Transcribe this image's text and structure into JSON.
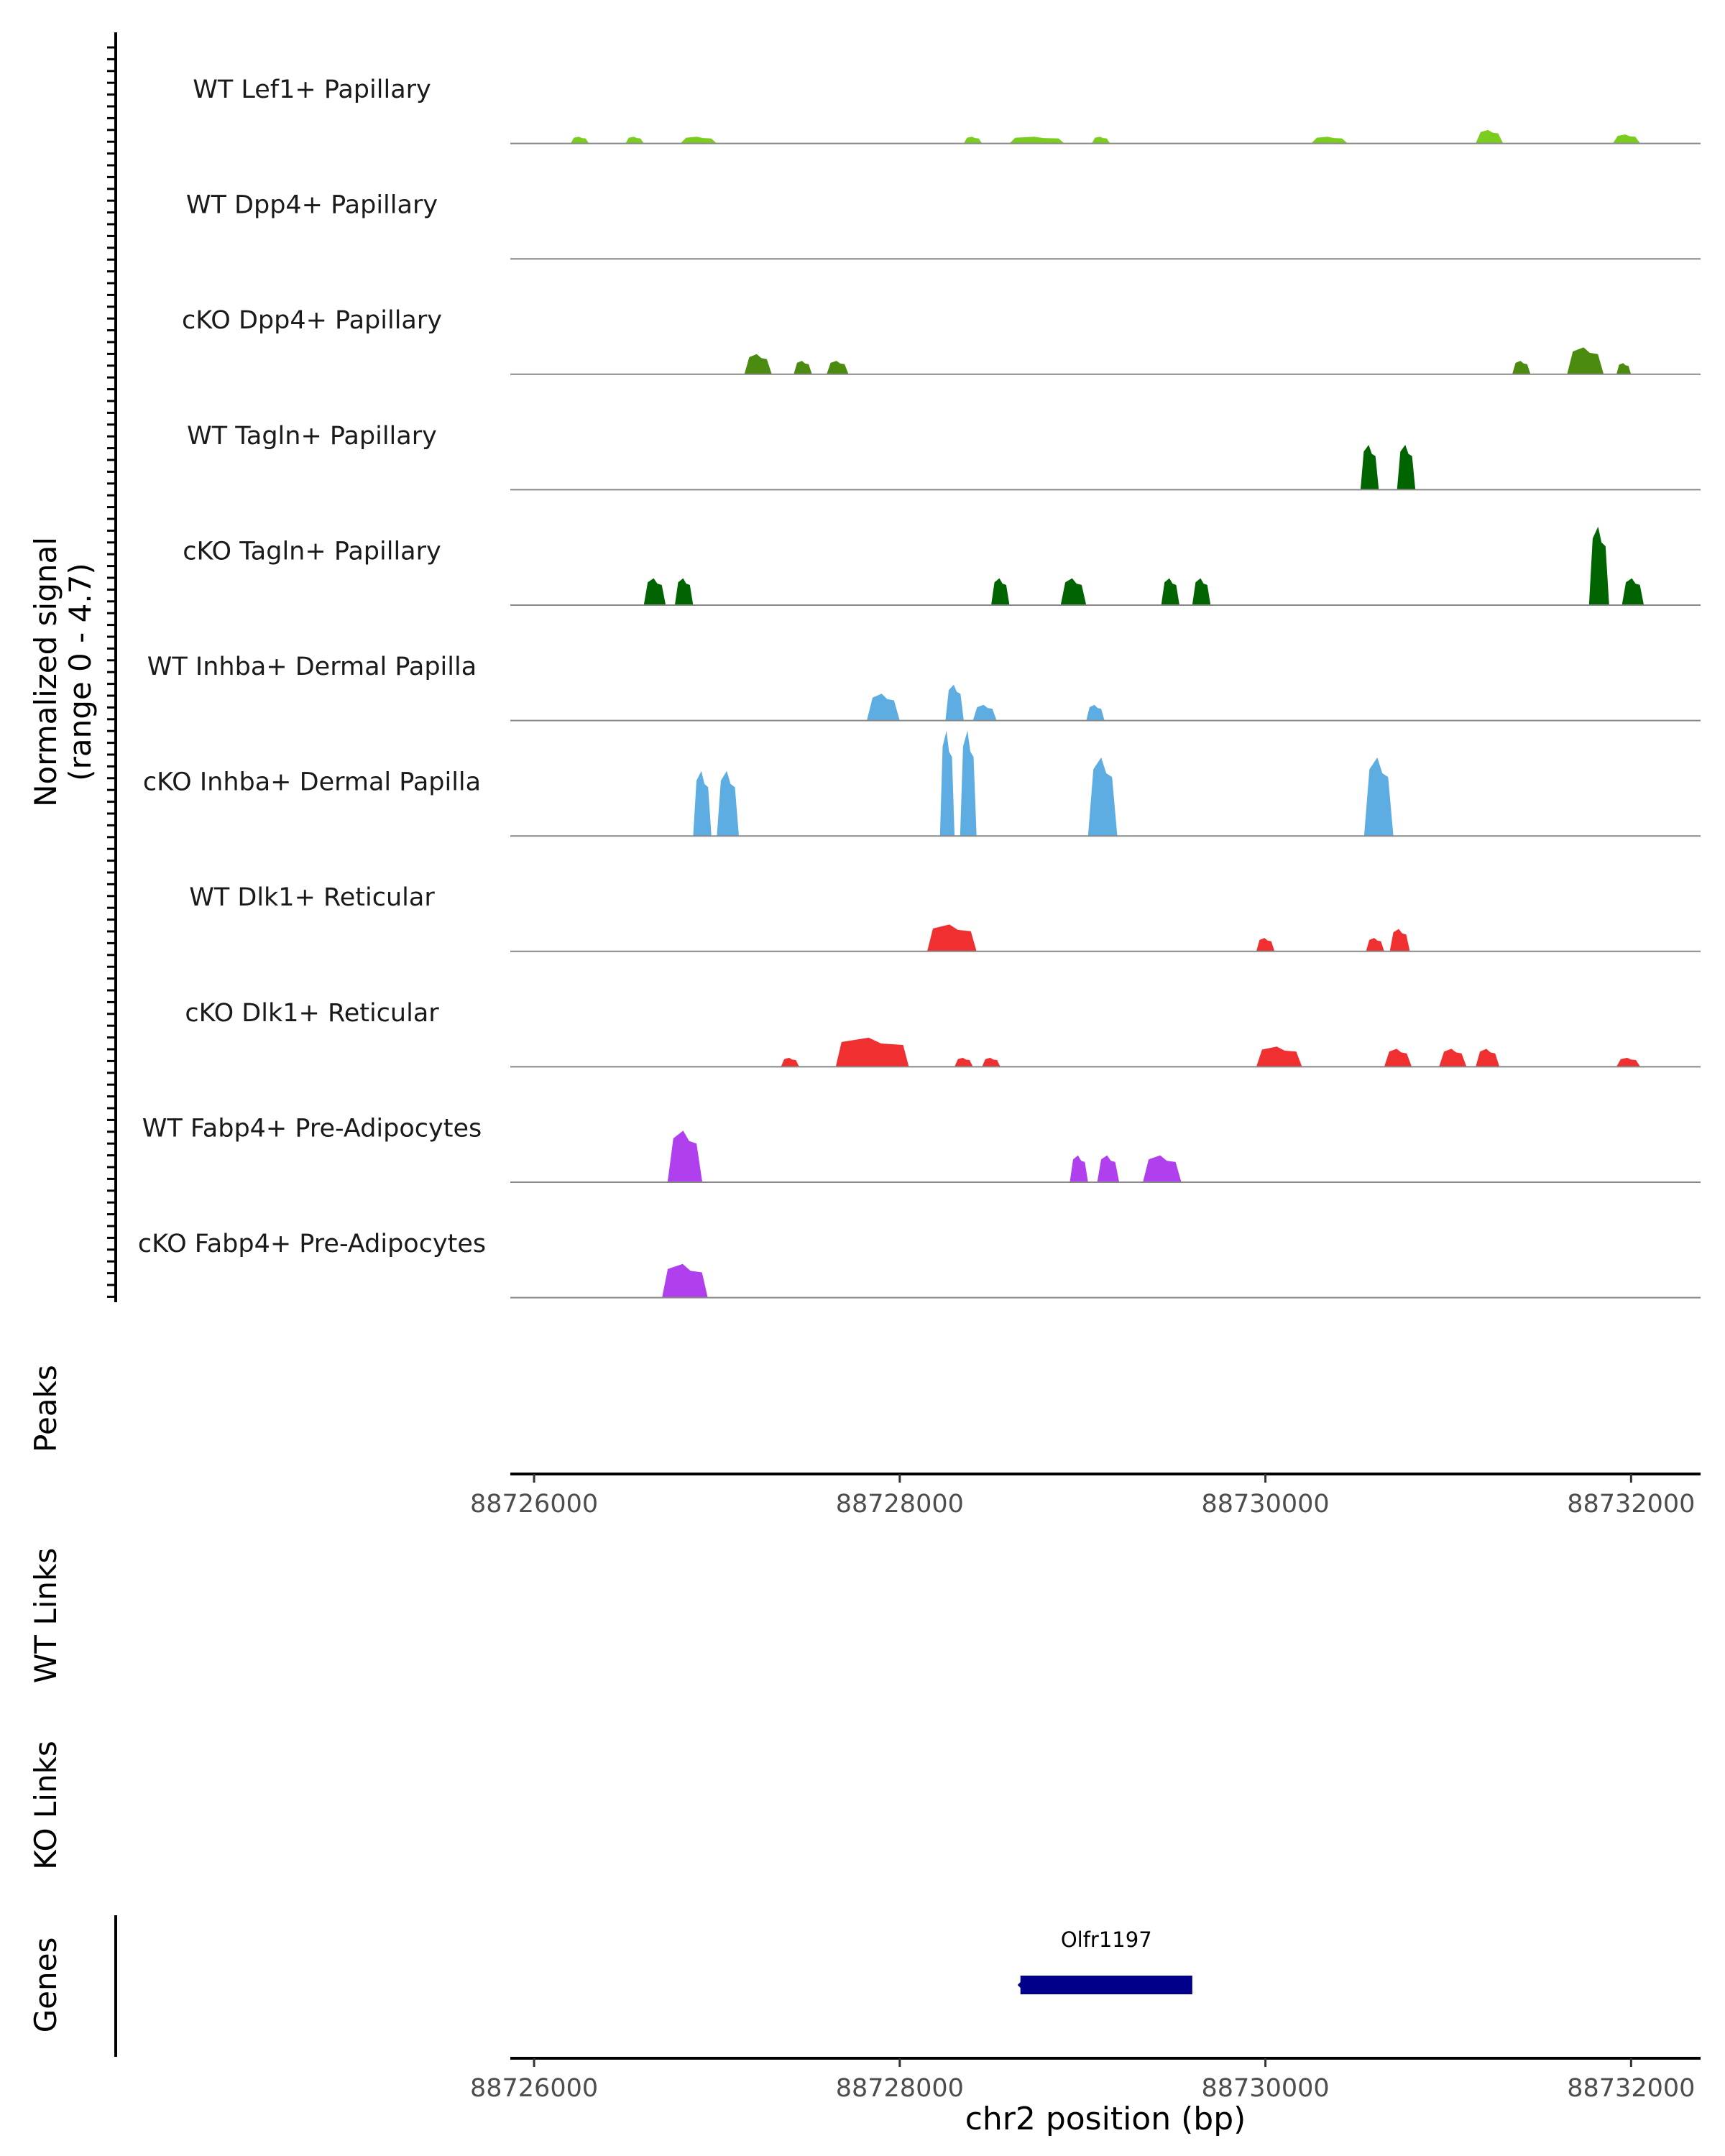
{
  "chart_data": {
    "type": "area",
    "title": "",
    "xlabel": "chr2 position (bp)",
    "ylabel_line1": "Normalized signal",
    "ylabel_line2": "(range 0 - 4.7)",
    "ylim": [
      0,
      4.7
    ],
    "xlim": [
      88725870,
      88732380
    ],
    "x_ticks": [
      88726000,
      88728000,
      88730000,
      88732000
    ],
    "x_tick_labels": [
      "88726000",
      "88728000",
      "88730000",
      "88732000"
    ],
    "tracks": [
      {
        "name": "WT Lef1+ Papillary",
        "color": "#7ACD1E",
        "peaks": [
          [
            88726200,
            88726300,
            0.05,
            0.3
          ],
          [
            88726500,
            88726600,
            0,
            0.3
          ],
          [
            88726800,
            88727000,
            0.05,
            0.3
          ],
          [
            88728350,
            88728450,
            0,
            0.3
          ],
          [
            88728600,
            88728900,
            0.1,
            0.3
          ],
          [
            88729050,
            88729150,
            0,
            0.3
          ],
          [
            88730250,
            88730450,
            0,
            0.3
          ],
          [
            88731150,
            88731300,
            0,
            0.6
          ],
          [
            88731900,
            88732050,
            0,
            0.4
          ]
        ]
      },
      {
        "name": "WT Dpp4+ Papillary",
        "color": "#4B8B0F",
        "peaks": []
      },
      {
        "name": "cKO Dpp4+ Papillary",
        "color": "#4B8B0F",
        "peaks": [
          [
            88727150,
            88727300,
            0.1,
            0.9
          ],
          [
            88727420,
            88727520,
            0,
            0.6
          ],
          [
            88727600,
            88727720,
            0,
            0.6
          ],
          [
            88731350,
            88731450,
            0,
            0.6
          ],
          [
            88731650,
            88731850,
            0.1,
            1.2
          ],
          [
            88731920,
            88732000,
            0,
            0.5
          ]
        ]
      },
      {
        "name": "WT Tagln+ Papillary",
        "color": "#006400",
        "peaks": [
          [
            88730520,
            88730620,
            0,
            2.0
          ],
          [
            88730720,
            88730820,
            0,
            2.0
          ]
        ]
      },
      {
        "name": "cKO Tagln+ Papillary",
        "color": "#006400",
        "peaks": [
          [
            88726600,
            88726720,
            0,
            1.2
          ],
          [
            88726770,
            88726870,
            0,
            1.2
          ],
          [
            88728500,
            88728600,
            0,
            1.2
          ],
          [
            88728880,
            88729020,
            0,
            1.2
          ],
          [
            88729430,
            88729530,
            0,
            1.2
          ],
          [
            88729600,
            88729700,
            0,
            1.2
          ],
          [
            88731770,
            88731880,
            0,
            3.5
          ],
          [
            88731950,
            88732070,
            0,
            1.2
          ]
        ]
      },
      {
        "name": "WT Inhba+ Dermal Papilla",
        "color": "#5DADE2",
        "peaks": [
          [
            88727820,
            88728000,
            0.1,
            1.2
          ],
          [
            88728250,
            88728350,
            0,
            1.6
          ],
          [
            88728400,
            88728530,
            0,
            0.7
          ],
          [
            88729020,
            88729120,
            0,
            0.7
          ]
        ]
      },
      {
        "name": "cKO Inhba+ Dermal Papilla",
        "color": "#5DADE2",
        "peaks": [
          [
            88726870,
            88726970,
            0,
            2.9
          ],
          [
            88727000,
            88727120,
            0,
            2.9
          ],
          [
            88728220,
            88728300,
            0,
            4.7
          ],
          [
            88728330,
            88728420,
            0,
            4.7
          ],
          [
            88729030,
            88729190,
            0,
            3.5
          ],
          [
            88730540,
            88730700,
            0,
            3.5
          ]
        ]
      },
      {
        "name": "WT Dlk1+ Reticular",
        "color": "#F03030",
        "peaks": [
          [
            88728150,
            88728420,
            0.1,
            1.2
          ],
          [
            88729950,
            88730050,
            0,
            0.6
          ],
          [
            88730550,
            88730650,
            0,
            0.6
          ],
          [
            88730680,
            88730790,
            0,
            1.0
          ]
        ]
      },
      {
        "name": "cKO Dlk1+ Reticular",
        "color": "#F03030",
        "peaks": [
          [
            88727350,
            88727450,
            0,
            0.4
          ],
          [
            88727650,
            88728050,
            0.1,
            1.3
          ],
          [
            88728300,
            88728400,
            0,
            0.4
          ],
          [
            88728450,
            88728550,
            0,
            0.4
          ],
          [
            88729950,
            88730200,
            0.1,
            0.9
          ],
          [
            88730650,
            88730800,
            0,
            0.8
          ],
          [
            88730950,
            88731100,
            0,
            0.8
          ],
          [
            88731150,
            88731280,
            0,
            0.8
          ],
          [
            88731920,
            88732050,
            0,
            0.4
          ]
        ]
      },
      {
        "name": "WT Fabp4+ Pre-Adipocytes",
        "color": "#B03FEE",
        "peaks": [
          [
            88726730,
            88726920,
            0,
            2.3
          ],
          [
            88728930,
            88729030,
            0,
            1.2
          ],
          [
            88729080,
            88729200,
            0,
            1.2
          ],
          [
            88729330,
            88729540,
            0,
            1.2
          ]
        ]
      },
      {
        "name": "cKO Fabp4+ Pre-Adipocytes",
        "color": "#B03FEE",
        "peaks": [
          [
            88726700,
            88726950,
            0,
            1.5
          ]
        ]
      }
    ],
    "bottom_tracks": {
      "peaks_label": "Peaks",
      "wt_links_label": "WT Links",
      "ko_links_label": "KO Links",
      "genes_label": "Genes"
    },
    "genes": [
      {
        "name": "Olfr1197",
        "start": 88728660,
        "end": 88729600,
        "color": "#00008B"
      }
    ]
  }
}
